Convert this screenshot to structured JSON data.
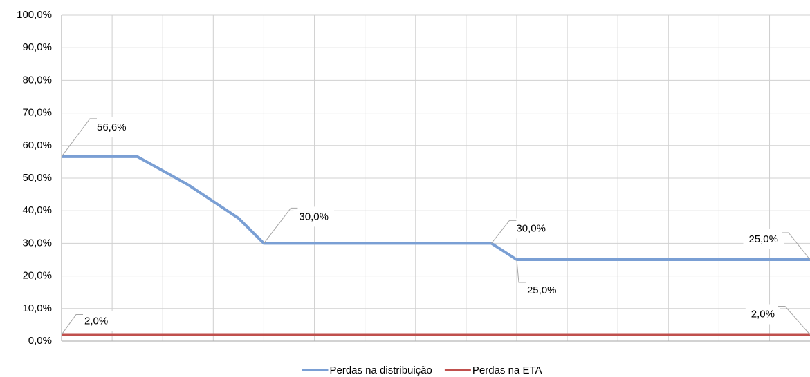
{
  "chart_data": {
    "type": "line",
    "xlim": [
      0,
      14.8
    ],
    "xticks": [
      0,
      1,
      2,
      3,
      4,
      5,
      6,
      7,
      8,
      9,
      10,
      11,
      12,
      13,
      14
    ],
    "xtick_labels": false,
    "ylim": [
      0,
      100
    ],
    "yticks": [
      {
        "value": 0,
        "label": "0,0%"
      },
      {
        "value": 10,
        "label": "10,0%"
      },
      {
        "value": 20,
        "label": "20,0%"
      },
      {
        "value": 30,
        "label": "30,0%"
      },
      {
        "value": 40,
        "label": "40,0%"
      },
      {
        "value": 50,
        "label": "50,0%"
      },
      {
        "value": 60,
        "label": "60,0%"
      },
      {
        "value": 70,
        "label": "70,0%"
      },
      {
        "value": 80,
        "label": "80,0%"
      },
      {
        "value": 90,
        "label": "90,0%"
      },
      {
        "value": 100,
        "label": "100,0%"
      }
    ],
    "grid": true,
    "legend": "bottom",
    "series": [
      {
        "name": "Perdas na distribuição",
        "color": "#7a9fd4",
        "x": [
          0,
          1.5,
          2.5,
          3.5,
          4,
          8.5,
          9,
          14.8
        ],
        "values": [
          56.6,
          56.6,
          48,
          37.7,
          30,
          30,
          25,
          25
        ],
        "value_labels": [
          "56,6%",
          null,
          null,
          null,
          "30,0%",
          "30,0%",
          "25,0%",
          "25,0%"
        ]
      },
      {
        "name": "Perdas na ETA",
        "color": "#c0504d",
        "x": [
          0,
          14.8
        ],
        "values": [
          2,
          2
        ],
        "value_labels": [
          "2,0%",
          "2,0%"
        ]
      }
    ]
  }
}
